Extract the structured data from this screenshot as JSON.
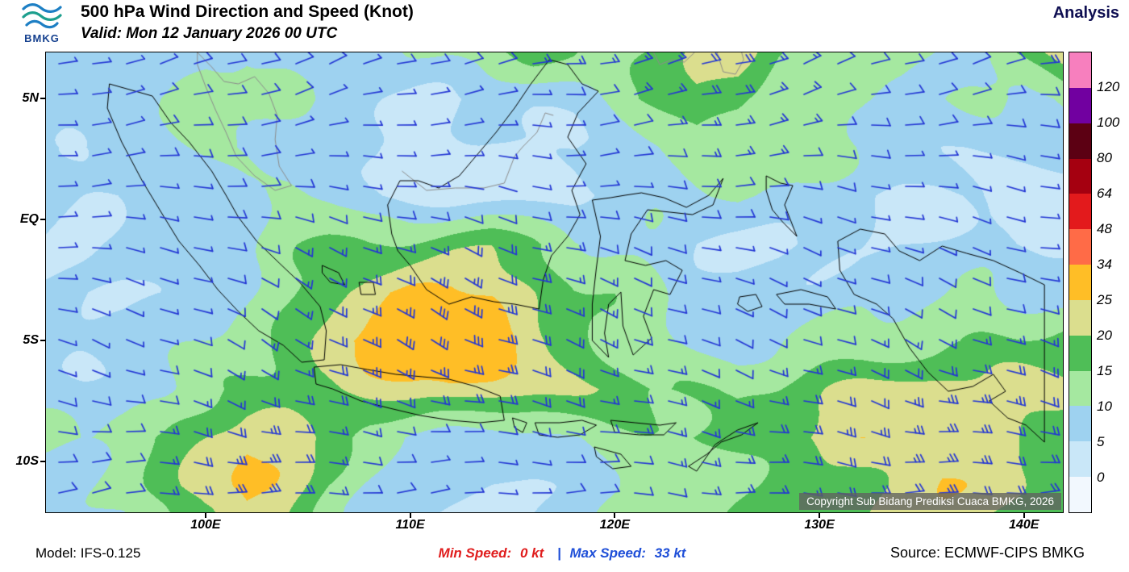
{
  "header": {
    "logo_label": "BMKG",
    "title": "500 hPa Wind Direction and Speed (Knot)",
    "mode": "Analysis",
    "valid": "Valid: Mon 12 January 2026 00 UTC"
  },
  "axes": {
    "lat": [
      {
        "label": "5N",
        "lat": 5
      },
      {
        "label": "EQ",
        "lat": 0
      },
      {
        "label": "5S",
        "lat": -5
      },
      {
        "label": "10S",
        "lat": -10
      }
    ],
    "lon": [
      {
        "label": "100E",
        "lon": 100
      },
      {
        "label": "110E",
        "lon": 110
      },
      {
        "label": "120E",
        "lon": 120
      },
      {
        "label": "130E",
        "lon": 130
      },
      {
        "label": "140E",
        "lon": 140
      }
    ]
  },
  "legend": {
    "values": [
      "120",
      "100",
      "80",
      "64",
      "48",
      "34",
      "25",
      "20",
      "15",
      "10",
      "5",
      "0"
    ]
  },
  "map": {
    "copyright": "Copyright Sub Bidang Prediksi Cuaca BMKG, 2026"
  },
  "footer": {
    "model": "Model: IFS-0.125",
    "min_label": "Min Speed:",
    "min_value": "0 kt",
    "separator": "|",
    "max_label": "Max Speed:",
    "max_value": "33 kt",
    "source": "Source: ECMWF-CIPS BMKG"
  },
  "chart_data": {
    "type": "heatmap",
    "title": "500 hPa Wind Direction and Speed (Knot)",
    "product": "Analysis",
    "valid_time": "Mon 12 January 2026 00 UTC",
    "units": "knot",
    "model": "IFS-0.125",
    "source": "ECMWF-CIPS BMKG",
    "min_speed_kt": 0,
    "max_speed_kt": 33,
    "extent": {
      "lon_min": 92.2,
      "lon_max": 141.9,
      "lat_min": -12.1,
      "lat_max": 6.9
    },
    "legend": {
      "thresholds": [
        0,
        5,
        10,
        15,
        20,
        25,
        34,
        48,
        64,
        80,
        100,
        120
      ],
      "colors": [
        "#F2F8FE",
        "#C9E7F8",
        "#9ED2F0",
        "#A5E8A0",
        "#4FBE57",
        "#DBDE8E",
        "#FFBE26",
        "#FF6B47",
        "#E31A1C",
        "#A50010",
        "#5C0013",
        "#7100A0",
        "#F77FBE"
      ]
    },
    "grid": {
      "lons": [
        92,
        94,
        96,
        98,
        100,
        102,
        104,
        106,
        108,
        110,
        112,
        114,
        116,
        118,
        120,
        122,
        124,
        126,
        128,
        130,
        132,
        134,
        136,
        138,
        140,
        142
      ],
      "lats": [
        7,
        5,
        3,
        1,
        -1,
        -3,
        -5,
        -7,
        -9,
        -11,
        -13
      ],
      "speed_kt": [
        [
          6,
          6,
          6,
          7,
          10,
          12,
          10,
          8,
          8,
          9,
          10,
          14,
          18,
          16,
          12,
          14,
          22,
          24,
          16,
          13,
          12,
          12,
          10,
          8,
          16,
          26
        ],
        [
          6,
          6,
          6,
          8,
          11,
          12,
          10,
          7,
          5,
          5,
          4,
          5,
          6,
          8,
          12,
          16,
          20,
          18,
          14,
          12,
          12,
          11,
          10,
          10,
          10,
          12
        ],
        [
          7,
          7,
          8,
          8,
          9,
          8,
          6,
          5,
          4,
          4,
          3,
          3,
          4,
          5,
          8,
          10,
          13,
          14,
          13,
          12,
          10,
          8,
          6,
          6,
          6,
          6
        ],
        [
          5,
          5,
          5,
          6,
          7,
          9,
          10,
          8,
          5,
          3,
          2,
          2,
          3,
          4,
          6,
          8,
          10,
          12,
          10,
          8,
          6,
          5,
          5,
          5,
          4,
          4
        ],
        [
          5,
          5,
          6,
          6,
          7,
          9,
          13,
          14,
          14,
          15,
          17,
          18,
          16,
          12,
          11,
          9,
          6,
          5,
          5,
          6,
          7,
          7,
          6,
          5,
          4,
          4
        ],
        [
          4,
          4,
          4,
          5,
          7,
          10,
          14,
          18,
          23,
          26,
          27,
          25,
          20,
          15,
          13,
          10,
          7,
          6,
          6,
          7,
          8,
          9,
          10,
          11,
          9,
          8
        ],
        [
          6,
          6,
          6,
          7,
          9,
          12,
          15,
          20,
          26,
          30,
          32,
          28,
          22,
          18,
          14,
          11,
          10,
          10,
          11,
          12,
          13,
          13,
          14,
          15,
          16,
          18
        ],
        [
          7,
          7,
          8,
          10,
          13,
          15,
          17,
          19,
          22,
          24,
          25,
          23,
          21,
          20,
          18,
          15,
          14,
          13,
          15,
          18,
          21,
          22,
          23,
          24,
          24,
          22
        ],
        [
          9,
          10,
          12,
          15,
          20,
          25,
          24,
          17,
          12,
          9,
          7,
          7,
          8,
          10,
          12,
          13,
          15,
          17,
          19,
          22,
          25,
          26,
          26,
          24,
          21,
          18
        ],
        [
          8,
          8,
          10,
          16,
          23,
          27,
          22,
          14,
          10,
          7,
          6,
          5,
          6,
          8,
          10,
          12,
          14,
          15,
          16,
          17,
          19,
          22,
          24,
          22,
          20,
          17
        ],
        [
          7,
          7,
          9,
          14,
          20,
          24,
          19,
          12,
          9,
          6,
          5,
          5,
          5,
          7,
          9,
          11,
          13,
          14,
          15,
          16,
          18,
          20,
          22,
          20,
          18,
          15
        ]
      ],
      "dir_from_deg": [
        [
          75,
          75,
          75,
          75,
          75,
          70,
          70,
          70,
          70,
          72,
          75,
          78,
          80,
          80,
          78,
          76,
          74,
          72,
          70,
          70,
          70,
          70,
          72,
          74,
          76,
          78
        ],
        [
          80,
          80,
          80,
          80,
          78,
          75,
          75,
          75,
          78,
          80,
          82,
          84,
          85,
          84,
          82,
          80,
          78,
          76,
          75,
          75,
          76,
          78,
          80,
          82,
          84,
          85
        ],
        [
          85,
          85,
          85,
          85,
          85,
          85,
          85,
          85,
          88,
          90,
          92,
          92,
          90,
          88,
          86,
          85,
          85,
          85,
          86,
          88,
          90,
          92,
          94,
          95,
          95,
          95
        ],
        [
          90,
          90,
          90,
          90,
          92,
          95,
          95,
          95,
          95,
          98,
          100,
          100,
          98,
          95,
          92,
          90,
          90,
          92,
          95,
          98,
          100,
          100,
          100,
          100,
          100,
          100
        ],
        [
          95,
          95,
          98,
          100,
          105,
          108,
          110,
          112,
          112,
          112,
          110,
          108,
          106,
          105,
          105,
          105,
          105,
          105,
          105,
          108,
          110,
          110,
          108,
          105,
          102,
          100
        ],
        [
          100,
          102,
          105,
          108,
          112,
          115,
          118,
          120,
          120,
          118,
          116,
          114,
          112,
          110,
          110,
          110,
          110,
          110,
          110,
          112,
          113,
          113,
          112,
          110,
          108,
          106
        ],
        [
          105,
          108,
          110,
          112,
          115,
          118,
          120,
          120,
          118,
          116,
          114,
          112,
          110,
          110,
          110,
          110,
          110,
          110,
          110,
          112,
          113,
          114,
          114,
          112,
          110,
          108
        ],
        [
          100,
          102,
          105,
          108,
          110,
          112,
          112,
          110,
          108,
          106,
          105,
          105,
          105,
          105,
          105,
          106,
          108,
          108,
          108,
          108,
          108,
          108,
          106,
          105,
          104,
          102
        ],
        [
          90,
          92,
          95,
          98,
          100,
          102,
          100,
          98,
          96,
          95,
          95,
          95,
          96,
          98,
          100,
          100,
          100,
          100,
          100,
          100,
          100,
          98,
          96,
          95,
          94,
          92
        ],
        [
          80,
          82,
          85,
          88,
          90,
          92,
          90,
          88,
          86,
          85,
          85,
          86,
          88,
          90,
          92,
          94,
          95,
          95,
          95,
          94,
          93,
          92,
          90,
          88,
          86,
          85
        ],
        [
          78,
          80,
          82,
          85,
          88,
          90,
          88,
          86,
          84,
          83,
          83,
          84,
          86,
          88,
          90,
          92,
          93,
          93,
          93,
          92,
          91,
          90,
          88,
          86,
          84,
          83
        ]
      ]
    }
  }
}
